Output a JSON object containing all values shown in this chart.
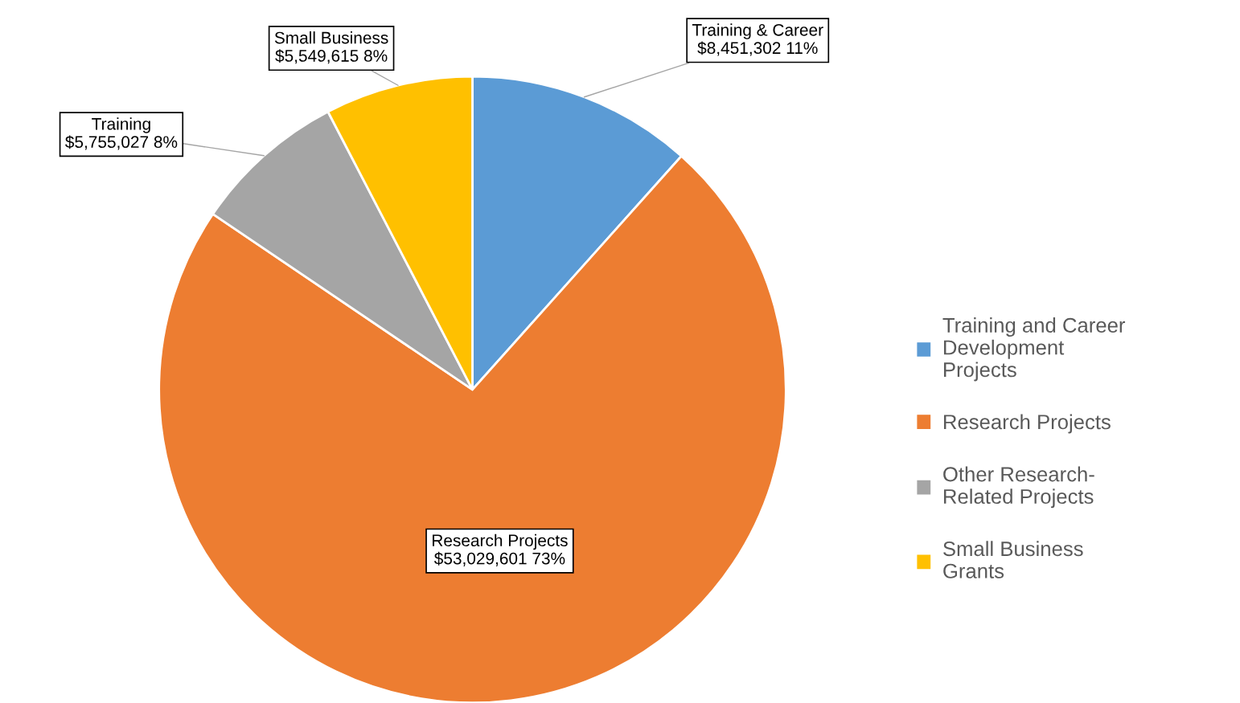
{
  "chart_data": {
    "type": "pie",
    "categories": [
      "Training and Career\nDevelopment\nProjects",
      "Research Projects",
      "Other Research-\nRelated Projects",
      "Small Business\nGrants"
    ],
    "values": [
      8451302,
      53029601,
      5755027,
      5549615
    ],
    "colors": [
      "#5b9bd5",
      "#ed7d31",
      "#a5a5a5",
      "#ffc000"
    ],
    "value_labels": [
      "Training & Career\n$8,451,302 11%",
      "Research Projects\n$53,029,601 73%",
      "Training\n$5,755,027 8%",
      "Small Business\n$5,549,615 8%"
    ],
    "legend": "right"
  }
}
